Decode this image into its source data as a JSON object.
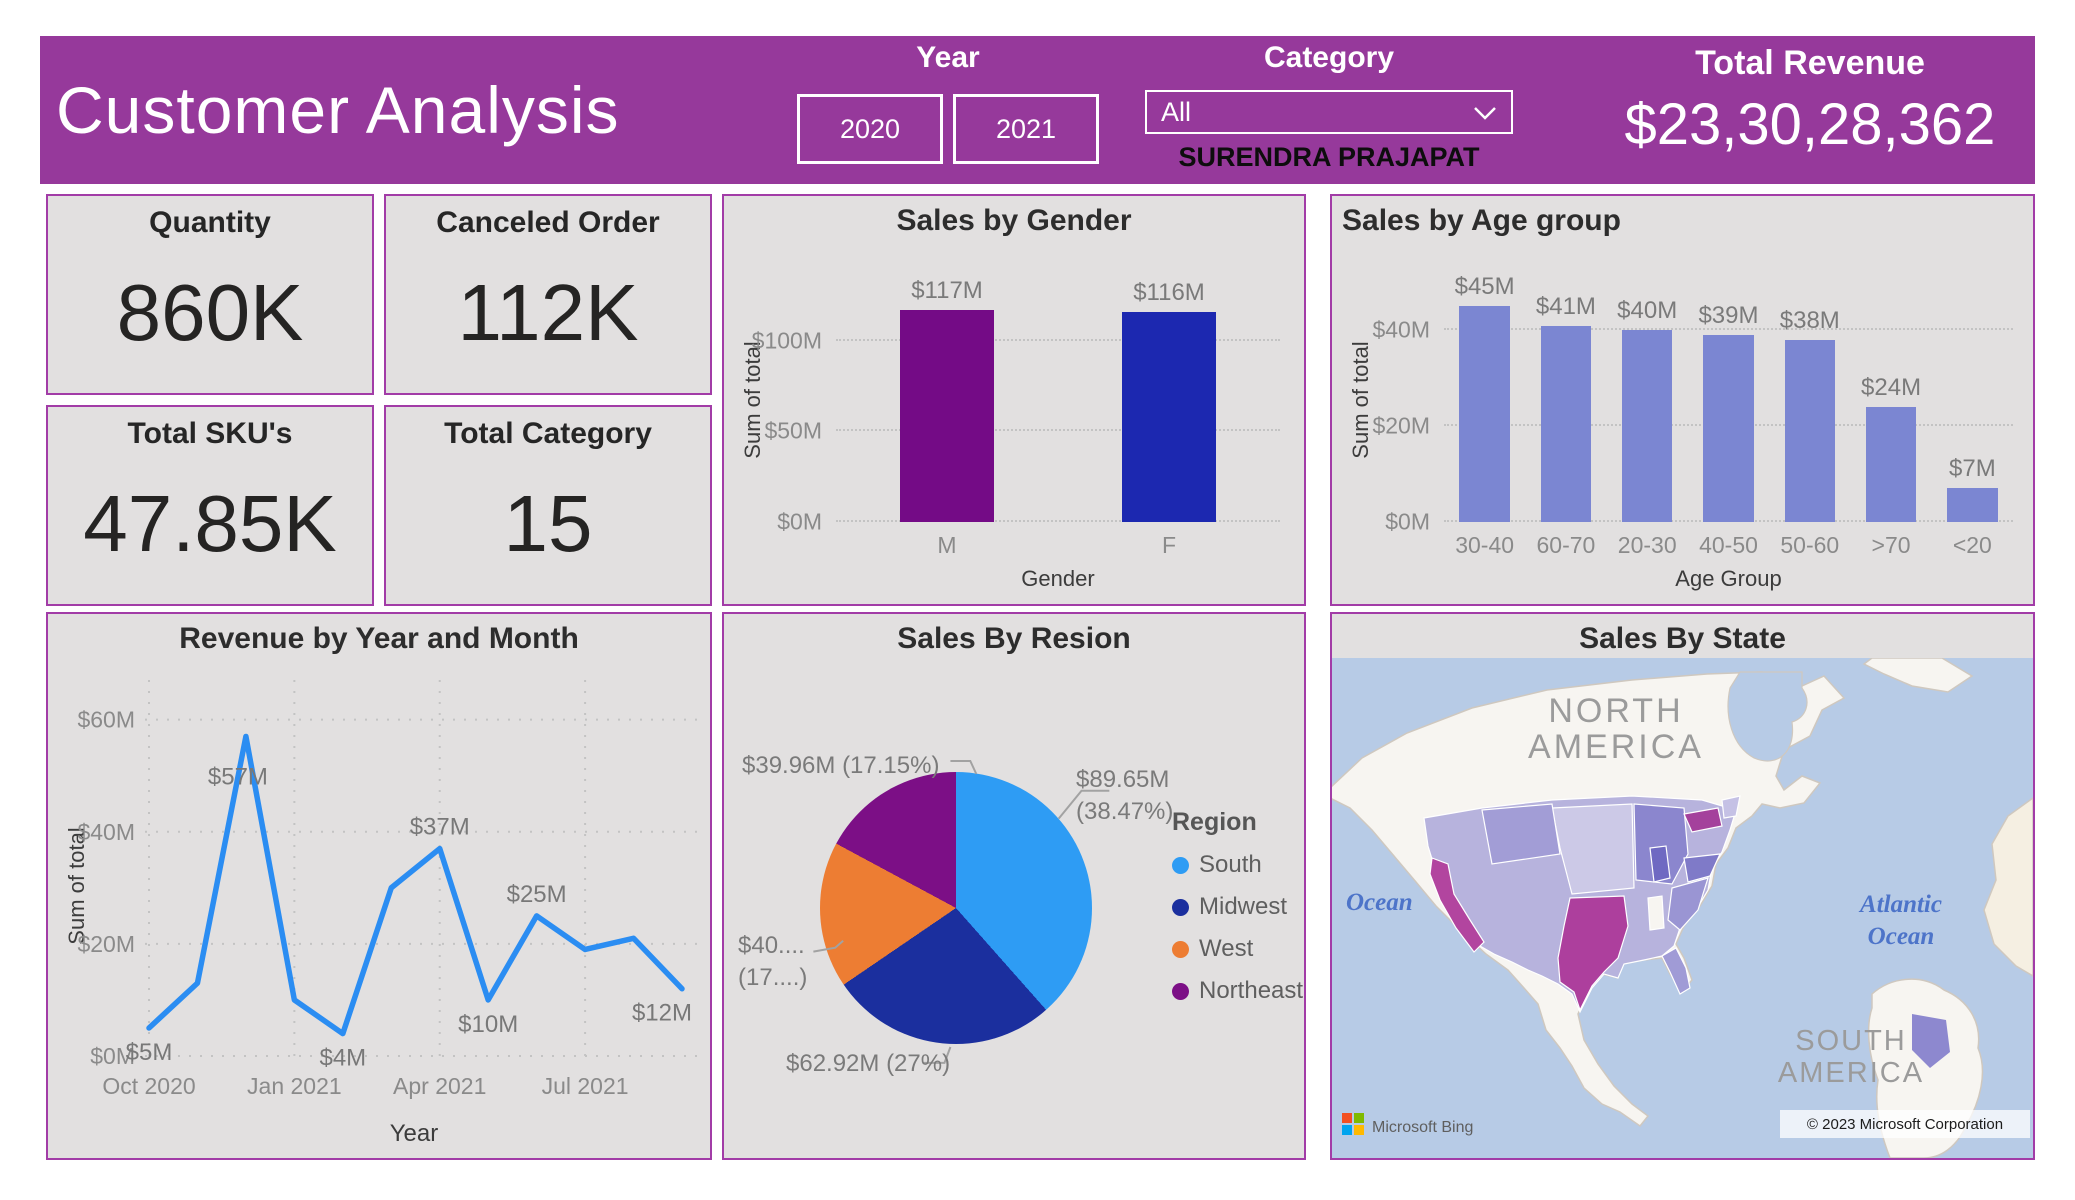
{
  "header": {
    "title": "Customer Analysis",
    "year_slicer": {
      "label": "Year",
      "options": [
        "2020",
        "2021"
      ]
    },
    "category_slicer": {
      "label": "Category",
      "selected": "All"
    },
    "author": "SURENDRA PRAJAPAT",
    "total_revenue": {
      "label": "Total Revenue",
      "value": "$23,30,28,362"
    }
  },
  "kpis": [
    {
      "label": "Quantity",
      "value": "860K"
    },
    {
      "label": "Canceled Order",
      "value": "112K"
    },
    {
      "label": "Total SKU's",
      "value": "47.85K"
    },
    {
      "label": "Total Category",
      "value": "15"
    }
  ],
  "chart_data": [
    {
      "id": "sales_by_gender",
      "type": "bar",
      "title": "Sales by Gender",
      "categories": [
        "M",
        "F"
      ],
      "values": [
        117,
        116
      ],
      "value_labels": [
        "$117M",
        "$116M"
      ],
      "bar_colors": [
        "#740b86",
        "#1c28b0"
      ],
      "xlabel": "Gender",
      "ylabel": "Sum of total",
      "ylim": [
        0,
        140
      ],
      "yticks": [
        {
          "value": 0,
          "label": "$0M"
        },
        {
          "value": 50,
          "label": "$50M"
        },
        {
          "value": 100,
          "label": "$100M"
        }
      ],
      "grid": "dotted"
    },
    {
      "id": "sales_by_age_group",
      "type": "bar",
      "title": "Sales by Age group",
      "categories": [
        "30-40",
        "60-70",
        "20-30",
        "40-50",
        "50-60",
        ">70",
        "<20"
      ],
      "values": [
        45,
        41,
        40,
        39,
        38,
        24,
        7
      ],
      "value_labels": [
        "$45M",
        "$41M",
        "$40M",
        "$39M",
        "$38M",
        "$24M",
        "$7M"
      ],
      "bar_color": "#7b86d2",
      "xlabel": "Age Group",
      "ylabel": "Sum of total",
      "ylim": [
        0,
        53
      ],
      "yticks": [
        {
          "value": 0,
          "label": "$0M"
        },
        {
          "value": 20,
          "label": "$20M"
        },
        {
          "value": 40,
          "label": "$40M"
        }
      ],
      "grid": "dotted"
    },
    {
      "id": "revenue_by_year_month",
      "type": "line",
      "title": "Revenue by Year and Month",
      "x": [
        "Oct 2020",
        "Nov 2020",
        "Dec 2020",
        "Jan 2021",
        "Feb 2021",
        "Mar 2021",
        "Apr 2021",
        "May 2021",
        "Jun 2021",
        "Jul 2021",
        "Aug 2021",
        "Sep 2021"
      ],
      "values": [
        5,
        13,
        57,
        10,
        4,
        30,
        37,
        10,
        25,
        19,
        21,
        12
      ],
      "xticks": [
        {
          "index": 0,
          "label": "Oct 2020"
        },
        {
          "index": 3,
          "label": "Jan 2021"
        },
        {
          "index": 6,
          "label": "Apr 2021"
        },
        {
          "index": 9,
          "label": "Jul 2021"
        }
      ],
      "point_labels": [
        {
          "index": 0,
          "text": "$5M",
          "placement": "below"
        },
        {
          "index": 2,
          "text": "$57M",
          "placement": "left"
        },
        {
          "index": 4,
          "text": "$4M",
          "placement": "below"
        },
        {
          "index": 6,
          "text": "$37M",
          "placement": "above"
        },
        {
          "index": 7,
          "text": "$10M",
          "placement": "below"
        },
        {
          "index": 8,
          "text": "$25M",
          "placement": "above"
        },
        {
          "index": 11,
          "text": "$12M",
          "placement": "below"
        }
      ],
      "line_color": "#2b8df2",
      "xlabel": "Year",
      "ylabel": "Sum of total",
      "ylim": [
        0,
        66
      ],
      "yticks": [
        {
          "value": 0,
          "label": "$0M"
        },
        {
          "value": 20,
          "label": "$20M"
        },
        {
          "value": 40,
          "label": "$40M"
        },
        {
          "value": 60,
          "label": "$60M"
        }
      ],
      "grid": "dotted"
    },
    {
      "id": "sales_by_region",
      "type": "pie",
      "title": "Sales By Resion",
      "legend_title": "Region",
      "legend_position": "right",
      "series": [
        {
          "name": "South",
          "value_label": "$89.65M (38.47%)",
          "percent": 38.47,
          "color": "#2e9cf4"
        },
        {
          "name": "Midwest",
          "value_label": "$62.92M (27%)",
          "percent": 27.0,
          "color": "#1b2f9e"
        },
        {
          "name": "West",
          "value_label": "$40.... (17....)",
          "percent": 17.38,
          "color": "#ed7d33"
        },
        {
          "name": "Northeast",
          "value_label": "$39.96M (17.15%)",
          "percent": 17.15,
          "color": "#7c0f86"
        }
      ]
    }
  ],
  "map": {
    "title": "Sales By State",
    "labels": {
      "north_america_1": "NORTH",
      "north_america_2": "AMERICA",
      "south_america_1": "SOUTH",
      "south_america_2": "AMERICA",
      "ocean": "Ocean",
      "atlantic_1": "Atlantic",
      "atlantic_2": "Ocean"
    },
    "provider": "Microsoft Bing",
    "attribution": "© 2023 Microsoft Corporation"
  }
}
